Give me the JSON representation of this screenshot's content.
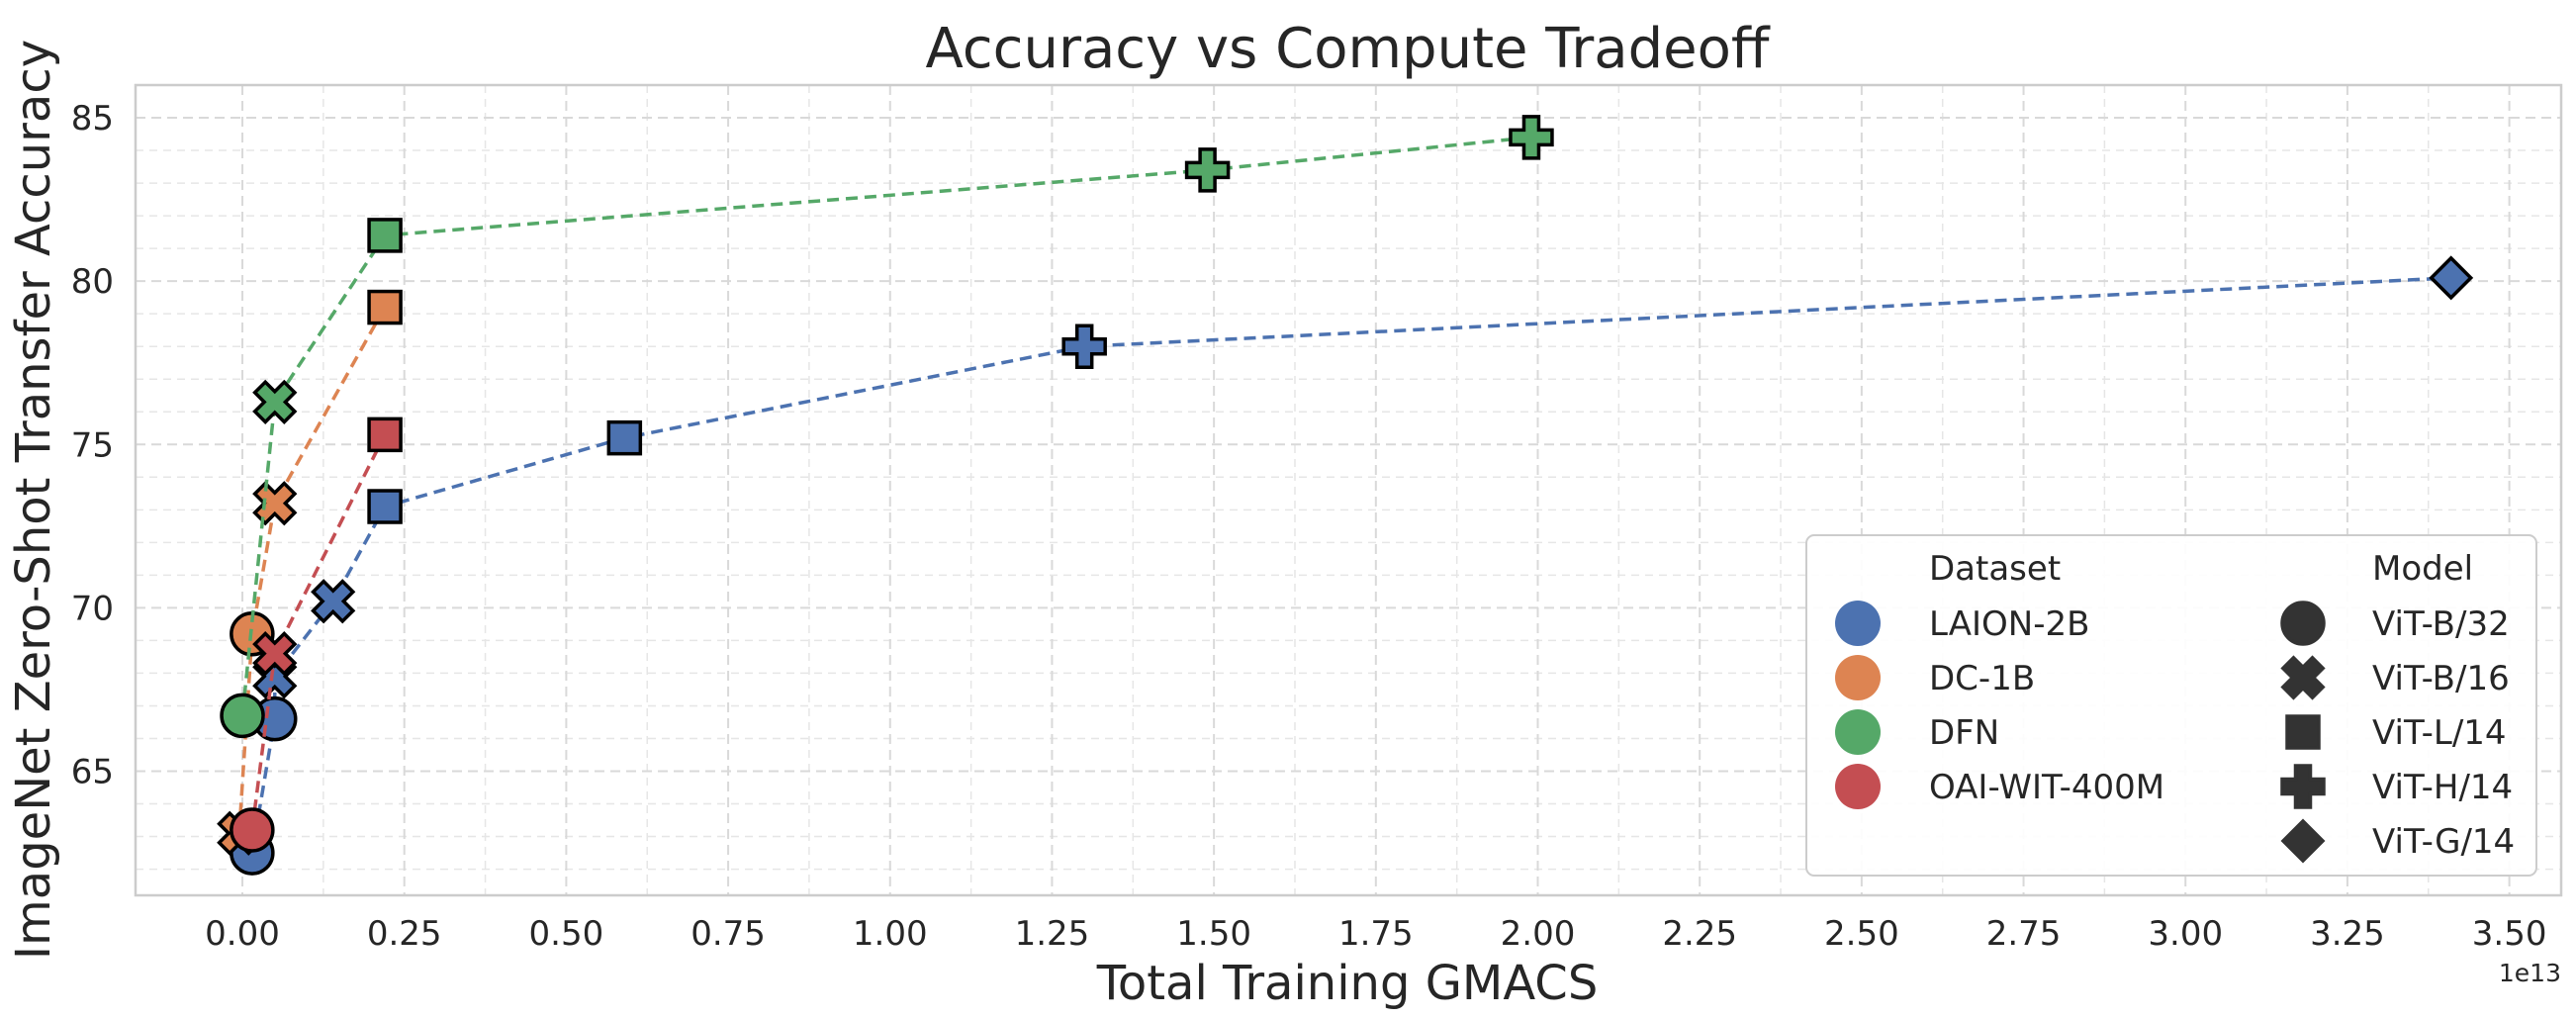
{
  "chart_data": {
    "type": "scatter",
    "title": "Accuracy vs Compute Tradeoff",
    "xlabel": "Total Training GMACS",
    "ylabel": "ImageNet Zero-Shot Transfer Accuracy",
    "x_multiplier_label": "1e13",
    "xlim": [
      -0.165,
      3.58
    ],
    "ylim": [
      61.2,
      86.0
    ],
    "x_ticks": [
      0.0,
      0.25,
      0.5,
      0.75,
      1.0,
      1.25,
      1.5,
      1.75,
      2.0,
      2.25,
      2.5,
      2.75,
      3.0,
      3.25,
      3.5
    ],
    "x_tick_labels": [
      "0.00",
      "0.25",
      "0.50",
      "0.75",
      "1.00",
      "1.25",
      "1.50",
      "1.75",
      "2.00",
      "2.25",
      "2.50",
      "2.75",
      "3.00",
      "3.25",
      "3.50"
    ],
    "y_ticks": [
      65,
      70,
      75,
      80,
      85
    ],
    "y_tick_labels": [
      "65",
      "70",
      "75",
      "80",
      "85"
    ],
    "grid": true,
    "legend_position": "bottom-right",
    "legend": {
      "dataset_title": "Dataset",
      "model_title": "Model",
      "datasets": [
        {
          "name": "LAION-2B",
          "color": "#4c72b0"
        },
        {
          "name": "DC-1B",
          "color": "#dd8452"
        },
        {
          "name": "DFN",
          "color": "#55a868"
        },
        {
          "name": "OAI-WIT-400M",
          "color": "#c44e52"
        }
      ],
      "models": [
        {
          "name": "ViT-B/32",
          "marker": "circle"
        },
        {
          "name": "ViT-B/16",
          "marker": "x"
        },
        {
          "name": "ViT-L/14",
          "marker": "square"
        },
        {
          "name": "ViT-H/14",
          "marker": "plus"
        },
        {
          "name": "ViT-G/14",
          "marker": "diamond"
        }
      ]
    },
    "series": [
      {
        "name": "LAION-2B",
        "color": "#4c72b0",
        "points": [
          {
            "model": "ViT-B/32",
            "marker": "circle",
            "x": 0.015,
            "y": 62.5
          },
          {
            "model": "ViT-B/32",
            "marker": "circle",
            "x": 0.05,
            "y": 66.6
          },
          {
            "model": "ViT-B/16",
            "marker": "x",
            "x": 0.05,
            "y": 67.9
          },
          {
            "model": "ViT-B/16",
            "marker": "x",
            "x": 0.14,
            "y": 70.2
          },
          {
            "model": "ViT-L/14",
            "marker": "square",
            "x": 0.22,
            "y": 73.1
          },
          {
            "model": "ViT-L/14",
            "marker": "square",
            "x": 0.59,
            "y": 75.2
          },
          {
            "model": "ViT-H/14",
            "marker": "plus",
            "x": 1.3,
            "y": 78.0
          },
          {
            "model": "ViT-G/14",
            "marker": "diamond",
            "x": 3.41,
            "y": 80.1
          }
        ]
      },
      {
        "name": "DC-1B",
        "color": "#dd8452",
        "points": [
          {
            "model": "ViT-B/32",
            "marker": "circle",
            "x": 0.015,
            "y": 69.2
          },
          {
            "model": "ViT-B/16",
            "marker": "x",
            "x": -0.005,
            "y": 63.1
          },
          {
            "model": "ViT-B/16",
            "marker": "x",
            "x": 0.05,
            "y": 73.2
          },
          {
            "model": "ViT-L/14",
            "marker": "square",
            "x": 0.22,
            "y": 79.2
          }
        ]
      },
      {
        "name": "DFN",
        "color": "#55a868",
        "points": [
          {
            "model": "ViT-B/32",
            "marker": "circle",
            "x": 0.0,
            "y": 66.7
          },
          {
            "model": "ViT-B/16",
            "marker": "x",
            "x": 0.05,
            "y": 76.3
          },
          {
            "model": "ViT-L/14",
            "marker": "square",
            "x": 0.22,
            "y": 81.4
          },
          {
            "model": "ViT-H/14",
            "marker": "plus",
            "x": 1.49,
            "y": 83.4
          },
          {
            "model": "ViT-H/14",
            "marker": "plus",
            "x": 1.99,
            "y": 84.4
          }
        ]
      },
      {
        "name": "OAI-WIT-400M",
        "color": "#c44e52",
        "points": [
          {
            "model": "ViT-B/32",
            "marker": "circle",
            "x": 0.015,
            "y": 63.2
          },
          {
            "model": "ViT-B/16",
            "marker": "x",
            "x": 0.05,
            "y": 68.6
          },
          {
            "model": "ViT-L/14",
            "marker": "square",
            "x": 0.22,
            "y": 75.3
          }
        ]
      }
    ]
  }
}
